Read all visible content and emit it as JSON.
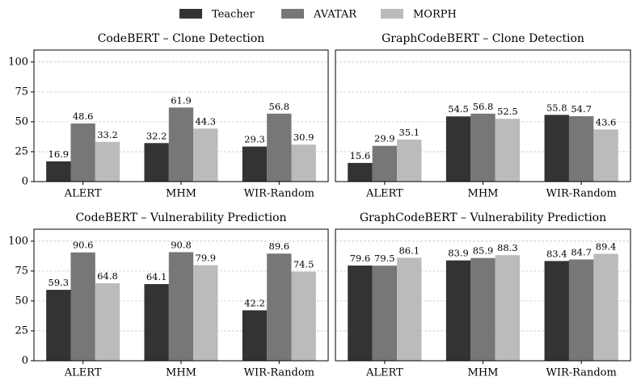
{
  "chart_data": [
    {
      "type": "bar",
      "title": "CodeBERT – Clone Detection",
      "categories": [
        "ALERT",
        "MHM",
        "WIR-Random"
      ],
      "series": [
        {
          "name": "Teacher",
          "color": "#333333",
          "values": [
            16.9,
            32.2,
            29.3
          ]
        },
        {
          "name": "AVATAR",
          "color": "#777777",
          "values": [
            48.6,
            61.9,
            56.8
          ]
        },
        {
          "name": "MORPH",
          "color": "#bbbbbb",
          "values": [
            33.2,
            44.3,
            30.9
          ]
        }
      ],
      "ylim": [
        0,
        110
      ],
      "yticks": [
        0,
        25,
        50,
        75,
        100
      ],
      "grid": true
    },
    {
      "type": "bar",
      "title": "GraphCodeBERT – Clone Detection",
      "categories": [
        "ALERT",
        "MHM",
        "WIR-Random"
      ],
      "series": [
        {
          "color": "#333333",
          "values": [
            15.6,
            54.5,
            55.8
          ]
        },
        {
          "color": "#777777",
          "values": [
            29.9,
            56.8,
            54.7
          ]
        },
        {
          "color": "#bbbbbb",
          "values": [
            35.1,
            52.5,
            43.6
          ]
        }
      ],
      "ylim": [
        0,
        110
      ],
      "yticks": [
        0,
        25,
        50,
        75,
        100
      ],
      "grid": true
    },
    {
      "type": "bar",
      "title": "CodeBERT – Vulnerability Prediction",
      "categories": [
        "ALERT",
        "MHM",
        "WIR-Random"
      ],
      "series": [
        {
          "color": "#333333",
          "values": [
            59.3,
            64.1,
            42.2
          ]
        },
        {
          "color": "#777777",
          "values": [
            90.6,
            90.8,
            89.6
          ]
        },
        {
          "color": "#bbbbbb",
          "values": [
            64.8,
            79.9,
            74.5
          ]
        }
      ],
      "ylim": [
        0,
        110
      ],
      "yticks": [
        0,
        25,
        50,
        75,
        100
      ],
      "grid": true
    },
    {
      "type": "bar",
      "title": "GraphCodeBERT – Vulnerability Prediction",
      "categories": [
        "ALERT",
        "MHM",
        "WIR-Random"
      ],
      "series": [
        {
          "color": "#333333",
          "values": [
            79.6,
            83.9,
            83.4
          ]
        },
        {
          "color": "#777777",
          "values": [
            79.5,
            85.9,
            84.7
          ]
        },
        {
          "color": "#bbbbbb",
          "values": [
            86.1,
            88.3,
            89.4
          ]
        }
      ],
      "ylim": [
        0,
        110
      ],
      "yticks": [
        0,
        25,
        50,
        75,
        100
      ],
      "grid": true
    }
  ]
}
